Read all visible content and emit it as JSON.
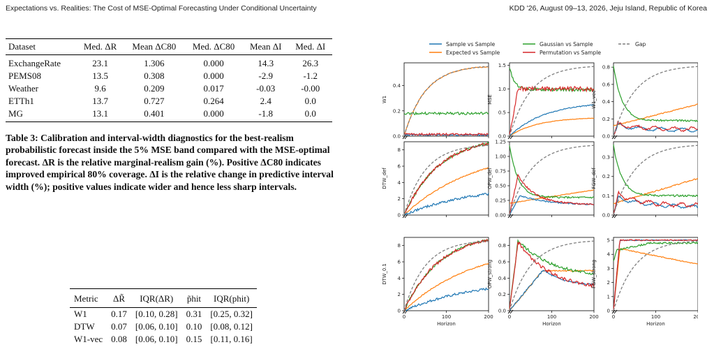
{
  "header": {
    "left": "Expectations vs. Realities: The Cost of MSE-Optimal Forecasting Under Conditional Uncertainty",
    "right": "KDD '26, August 09–13, 2026, Jeju Island, Republic of Korea"
  },
  "table3": {
    "headers": [
      "Dataset",
      "Med. ΔR",
      "Mean ΔC80",
      "Med. ΔC80",
      "Mean ΔI",
      "Med. ΔI"
    ],
    "rows": [
      [
        "ExchangeRate",
        "23.1",
        "1.306",
        "0.000",
        "14.3",
        "26.3"
      ],
      [
        "PEMS08",
        "13.5",
        "0.308",
        "0.000",
        "-2.9",
        "-1.2"
      ],
      [
        "Weather",
        "9.6",
        "0.209",
        "0.017",
        "-0.03",
        "-0.00"
      ],
      [
        "ETTh1",
        "13.7",
        "0.727",
        "0.264",
        "2.4",
        "0.0"
      ],
      [
        "MG",
        "13.1",
        "0.401",
        "0.000",
        "-1.8",
        "0.0"
      ]
    ],
    "caption": "Table 3: Calibration and interval-width diagnostics for the best-realism probabilistic forecast inside the 5% MSE band compared with the MSE-optimal forecast. ΔR is the relative marginal-realism gain (%). Positive ΔC80 indicates improved empirical 80% coverage. ΔI is the relative change in predictive interval width (%); positive values indicate wider and hence less sharp intervals."
  },
  "table4": {
    "headers": [
      "Metric",
      "ΔR̃",
      "IQR(ΔR)",
      "p̃hit",
      "IQR(phit)"
    ],
    "rows": [
      [
        "W1",
        "0.17",
        "[0.10, 0.28]",
        "0.31",
        "[0.25, 0.32]"
      ],
      [
        "DTW",
        "0.07",
        "[0.06, 0.10]",
        "0.10",
        "[0.08, 0.12]"
      ],
      [
        "W1-vec",
        "0.08",
        "[0.06, 0.10]",
        "0.15",
        "[0.11, 0.16]"
      ]
    ]
  },
  "figure": {
    "legend": [
      "Sample vs Sample",
      "Expected vs Sample",
      "Gaussian vs Sample",
      "Permutation vs Sample",
      "Gap"
    ],
    "colors": {
      "sample": "#1f77b4",
      "expected": "#ff7f0e",
      "gaussian": "#2ca02c",
      "permutation": "#d62728",
      "gap": "#7f7f7f"
    },
    "xlabel": "Horizon",
    "gap_label": "Gap",
    "xticks": [
      "0",
      "100",
      "200"
    ],
    "gap_ticks": [
      "0.0",
      "0.2",
      "0.4",
      "0.6",
      "0.8",
      "1.0"
    ],
    "panels": [
      {
        "ylabel": "W1",
        "ymax": 0.58,
        "yticks": [
          "0.0",
          "0.2",
          "0.4"
        ],
        "tickvals": [
          0,
          0.2,
          0.4
        ],
        "expected_end": 0.55,
        "expected_k": 0.02,
        "sample_level": 0.01,
        "gaussian_level": 0.18,
        "permutation_level": 0.015
      },
      {
        "ylabel": "MSE",
        "ymax": 1.55,
        "yticks": [
          "0.0",
          "0.5",
          "1.0",
          "1.5"
        ],
        "tickvals": [
          0,
          0.5,
          1.0,
          1.5
        ],
        "sample_end": 0.66,
        "expected_end": 0.38,
        "gaussian_start": 1.45,
        "gaussian_level": 0.98,
        "permutation_level": 1.0
      },
      {
        "ylabel": "W1_vec",
        "ymax": 0.85,
        "yticks": [
          "0.0",
          "0.2",
          "0.4",
          "0.6",
          "0.8"
        ],
        "tickvals": [
          0,
          0.2,
          0.4,
          0.6,
          0.8
        ],
        "sample_end": 0.07,
        "expected_end": 0.37,
        "gaussian_start": 0.82,
        "gaussian_level": 0.18,
        "permutation_level": 0.08
      },
      {
        "ylabel": "DTW_def",
        "ymax": 9,
        "yticks": [
          "0",
          "2",
          "4",
          "6",
          "8"
        ],
        "tickvals": [
          0,
          2,
          4,
          6,
          8
        ],
        "sample_end": 2.6,
        "expected_end": 5.8,
        "gaussian_end": 8.8,
        "permutation_end": 8.8
      },
      {
        "ylabel": "OPW_def",
        "ymax": 1.25,
        "yticks": [
          "0.00",
          "0.25",
          "0.50",
          "0.75",
          "1.00",
          "1.25"
        ],
        "tickvals": [
          0,
          0.25,
          0.5,
          0.75,
          1.0,
          1.25
        ],
        "sample_end": 0.17,
        "expected_end": 0.43,
        "gaussian_start": 1.2,
        "gaussian_level": 0.3,
        "permutation_peak": 0.68
      },
      {
        "ylabel": "FGW_def",
        "ymax": 0.38,
        "yticks": [
          "0.0",
          "0.1",
          "0.2",
          "0.3"
        ],
        "tickvals": [
          0,
          0.1,
          0.2,
          0.3
        ],
        "sample_end": 0.04,
        "expected_end": 0.19,
        "gaussian_start": 0.36,
        "gaussian_level": 0.1,
        "permutation_level": 0.05
      },
      {
        "ylabel": "DTW_0.1",
        "ymax": 9,
        "yticks": [
          "0",
          "2",
          "4",
          "6",
          "8"
        ],
        "tickvals": [
          0,
          2,
          4,
          6,
          8
        ],
        "sample_end": 2.7,
        "expected_end": 5.8,
        "gaussian_end": 8.7,
        "permutation_end": 8.7
      },
      {
        "ylabel": "OPW_strong",
        "ymax": 0.9,
        "yticks": [
          "0.0",
          "0.2",
          "0.4",
          "0.6",
          "0.8"
        ],
        "tickvals": [
          0,
          0.2,
          0.4,
          0.6,
          0.8
        ],
        "sample_end": 0.3,
        "expected_end": 0.49,
        "gaussian_peak": 0.86,
        "permutation_peak": 0.85
      },
      {
        "ylabel": "FGW_strong",
        "ymax": 5.2,
        "yticks": [
          "0",
          "1",
          "2",
          "3",
          "4",
          "5"
        ],
        "tickvals": [
          0,
          1,
          2,
          3,
          4,
          5
        ],
        "sample_end": 5.0,
        "expected_end": 3.3,
        "gaussian_end": 4.8,
        "permutation_end": 5.0
      }
    ]
  }
}
